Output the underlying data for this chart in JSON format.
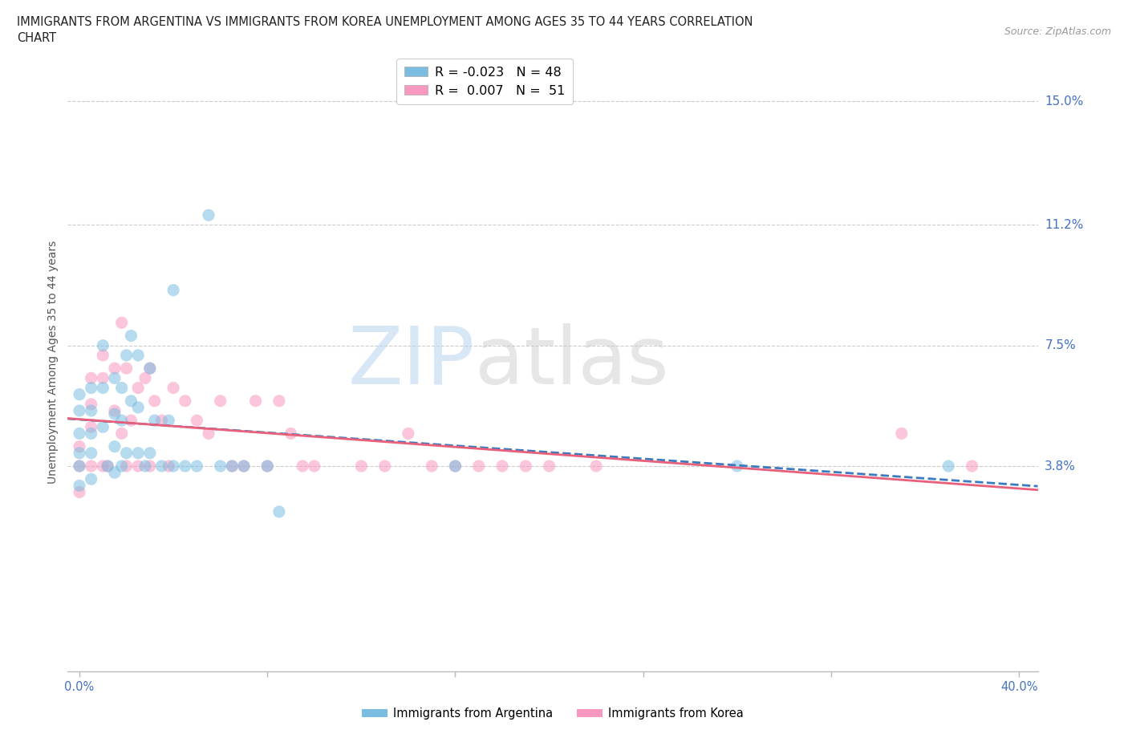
{
  "title_line1": "IMMIGRANTS FROM ARGENTINA VS IMMIGRANTS FROM KOREA UNEMPLOYMENT AMONG AGES 35 TO 44 YEARS CORRELATION",
  "title_line2": "CHART",
  "source_text": "Source: ZipAtlas.com",
  "ylabel": "Unemployment Among Ages 35 to 44 years",
  "xlim": [
    -0.005,
    0.408
  ],
  "ylim": [
    -0.025,
    0.165
  ],
  "yticks": [
    0.038,
    0.075,
    0.112,
    0.15
  ],
  "ytick_labels": [
    "3.8%",
    "7.5%",
    "11.2%",
    "15.0%"
  ],
  "xticks": [
    0.0,
    0.08,
    0.16,
    0.24,
    0.32,
    0.4
  ],
  "xtick_labels": [
    "0.0%",
    "",
    "",
    "",
    "",
    "40.0%"
  ],
  "legend_R_argentina": "-0.023",
  "legend_N_argentina": "48",
  "legend_R_korea": "0.007",
  "legend_N_korea": "51",
  "color_argentina": "#7abde0",
  "color_korea": "#f898c0",
  "trendline_argentina_color": "#3a7abf",
  "trendline_korea_color": "#e8607a",
  "watermark_zip": "ZIP",
  "watermark_atlas": "atlas",
  "background_color": "#ffffff",
  "argentina_x": [
    0.0,
    0.0,
    0.0,
    0.0,
    0.0,
    0.0,
    0.005,
    0.005,
    0.005,
    0.005,
    0.005,
    0.01,
    0.01,
    0.01,
    0.012,
    0.015,
    0.015,
    0.015,
    0.015,
    0.018,
    0.018,
    0.018,
    0.02,
    0.02,
    0.022,
    0.022,
    0.025,
    0.025,
    0.025,
    0.028,
    0.03,
    0.03,
    0.032,
    0.035,
    0.038,
    0.04,
    0.04,
    0.045,
    0.05,
    0.055,
    0.06,
    0.065,
    0.07,
    0.08,
    0.085,
    0.16,
    0.28,
    0.37
  ],
  "argentina_y": [
    0.06,
    0.055,
    0.048,
    0.042,
    0.038,
    0.032,
    0.062,
    0.055,
    0.048,
    0.042,
    0.034,
    0.075,
    0.062,
    0.05,
    0.038,
    0.065,
    0.054,
    0.044,
    0.036,
    0.062,
    0.052,
    0.038,
    0.072,
    0.042,
    0.078,
    0.058,
    0.072,
    0.056,
    0.042,
    0.038,
    0.068,
    0.042,
    0.052,
    0.038,
    0.052,
    0.092,
    0.038,
    0.038,
    0.038,
    0.115,
    0.038,
    0.038,
    0.038,
    0.038,
    0.024,
    0.038,
    0.038,
    0.038
  ],
  "korea_x": [
    0.0,
    0.0,
    0.0,
    0.005,
    0.005,
    0.005,
    0.005,
    0.01,
    0.01,
    0.01,
    0.012,
    0.015,
    0.015,
    0.018,
    0.018,
    0.02,
    0.02,
    0.022,
    0.025,
    0.025,
    0.028,
    0.03,
    0.03,
    0.032,
    0.035,
    0.038,
    0.04,
    0.045,
    0.05,
    0.055,
    0.06,
    0.065,
    0.07,
    0.075,
    0.08,
    0.085,
    0.09,
    0.095,
    0.1,
    0.12,
    0.13,
    0.14,
    0.15,
    0.16,
    0.17,
    0.18,
    0.19,
    0.2,
    0.22,
    0.35,
    0.38
  ],
  "korea_y": [
    0.044,
    0.038,
    0.03,
    0.065,
    0.057,
    0.05,
    0.038,
    0.072,
    0.065,
    0.038,
    0.038,
    0.068,
    0.055,
    0.082,
    0.048,
    0.068,
    0.038,
    0.052,
    0.062,
    0.038,
    0.065,
    0.068,
    0.038,
    0.058,
    0.052,
    0.038,
    0.062,
    0.058,
    0.052,
    0.048,
    0.058,
    0.038,
    0.038,
    0.058,
    0.038,
    0.058,
    0.048,
    0.038,
    0.038,
    0.038,
    0.038,
    0.048,
    0.038,
    0.038,
    0.038,
    0.038,
    0.038,
    0.038,
    0.038,
    0.048,
    0.038
  ]
}
